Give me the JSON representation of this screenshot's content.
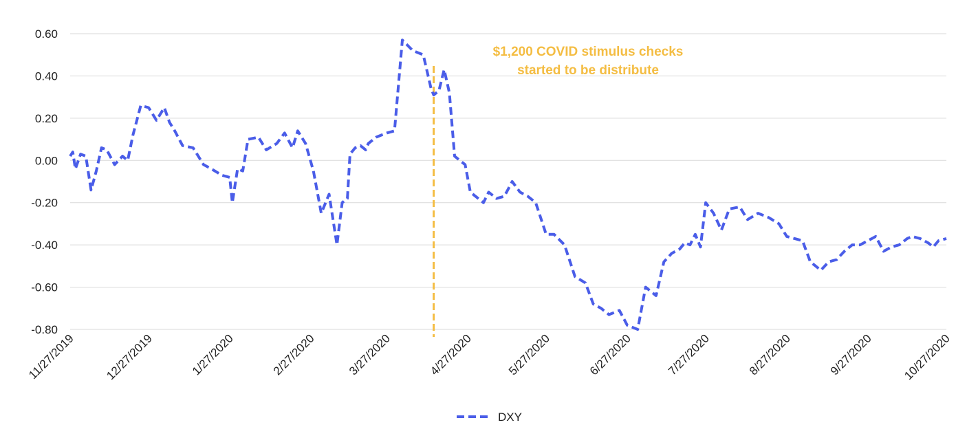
{
  "colors": {
    "series": "#4a5de8",
    "annotation": "#f4bd43",
    "grid": "#d9d9d9",
    "text": "#222222"
  },
  "legend": {
    "label": "DXY",
    "placement": "bottom-center"
  },
  "annotation": {
    "line1": "$1,200 COVID stimulus checks",
    "line2": "started to be distribute",
    "date": "4/14/2020"
  },
  "chart_data": {
    "type": "line",
    "title": "",
    "xlabel": "",
    "ylabel": "",
    "ylim": [
      -0.8,
      0.6
    ],
    "xlim": [
      "11/27/2019",
      "10/27/2020"
    ],
    "grid": true,
    "y_ticks": [
      "0.60",
      "0.40",
      "0.20",
      "0.00",
      "-0.20",
      "-0.40",
      "-0.60",
      "-0.80"
    ],
    "x_ticks": [
      "11/27/2019",
      "12/27/2019",
      "1/27/2020",
      "2/27/2020",
      "3/27/2020",
      "4/27/2020",
      "5/27/2020",
      "6/27/2020",
      "7/27/2020",
      "8/27/2020",
      "9/27/2020",
      "10/27/2020"
    ],
    "series": [
      {
        "name": "DXY",
        "style": "dashed",
        "x": [
          "2019-11-27",
          "2019-11-28",
          "2019-11-29",
          "2019-12-01",
          "2019-12-03",
          "2019-12-05",
          "2019-12-07",
          "2019-12-09",
          "2019-12-11",
          "2019-12-14",
          "2019-12-17",
          "2019-12-19",
          "2019-12-21",
          "2019-12-24",
          "2019-12-27",
          "2019-12-30",
          "2020-01-02",
          "2020-01-04",
          "2020-01-06",
          "2020-01-09",
          "2020-01-13",
          "2020-01-17",
          "2020-01-20",
          "2020-01-24",
          "2020-01-27",
          "2020-01-28",
          "2020-01-30",
          "2020-02-01",
          "2020-02-03",
          "2020-02-07",
          "2020-02-10",
          "2020-02-14",
          "2020-02-17",
          "2020-02-20",
          "2020-02-22",
          "2020-02-25",
          "2020-02-28",
          "2020-03-02",
          "2020-03-05",
          "2020-03-08",
          "2020-03-10",
          "2020-03-12",
          "2020-03-13",
          "2020-03-15",
          "2020-03-17",
          "2020-03-19",
          "2020-03-20",
          "2020-03-23",
          "2020-03-27",
          "2020-03-30",
          "2020-04-02",
          "2020-04-06",
          "2020-04-10",
          "2020-04-13",
          "2020-04-14",
          "2020-04-16",
          "2020-04-18",
          "2020-04-20",
          "2020-04-22",
          "2020-04-24",
          "2020-04-26",
          "2020-04-28",
          "2020-05-01",
          "2020-05-03",
          "2020-05-05",
          "2020-05-08",
          "2020-05-11",
          "2020-05-14",
          "2020-05-17",
          "2020-05-20",
          "2020-05-23",
          "2020-05-27",
          "2020-05-30",
          "2020-06-03",
          "2020-06-07",
          "2020-06-11",
          "2020-06-14",
          "2020-06-17",
          "2020-06-20",
          "2020-06-24",
          "2020-06-27",
          "2020-07-01",
          "2020-07-04",
          "2020-07-08",
          "2020-07-11",
          "2020-07-14",
          "2020-07-17",
          "2020-07-19",
          "2020-07-21",
          "2020-07-23",
          "2020-07-25",
          "2020-07-27",
          "2020-07-30",
          "2020-08-02",
          "2020-08-05",
          "2020-08-09",
          "2020-08-12",
          "2020-08-16",
          "2020-08-20",
          "2020-08-24",
          "2020-08-27",
          "2020-08-30",
          "2020-09-02",
          "2020-09-05",
          "2020-09-09",
          "2020-09-12",
          "2020-09-15",
          "2020-09-18",
          "2020-09-21",
          "2020-09-24",
          "2020-09-27",
          "2020-09-30",
          "2020-10-03",
          "2020-10-06",
          "2020-10-09",
          "2020-10-12",
          "2020-10-14",
          "2020-10-17",
          "2020-10-20",
          "2020-10-22",
          "2020-10-24",
          "2020-10-27"
        ],
        "y": [
          0.02,
          0.04,
          -0.04,
          0.03,
          0.02,
          -0.14,
          -0.05,
          0.06,
          0.05,
          -0.02,
          0.02,
          0.0,
          0.12,
          0.26,
          0.25,
          0.19,
          0.25,
          0.18,
          0.14,
          0.07,
          0.06,
          -0.02,
          -0.04,
          -0.07,
          -0.08,
          -0.2,
          -0.04,
          -0.05,
          0.1,
          0.11,
          0.05,
          0.08,
          0.13,
          0.06,
          0.14,
          0.08,
          -0.05,
          -0.25,
          -0.16,
          -0.4,
          -0.2,
          -0.18,
          0.03,
          0.06,
          0.07,
          0.05,
          0.08,
          0.11,
          0.13,
          0.14,
          0.57,
          0.52,
          0.5,
          0.34,
          0.31,
          0.33,
          0.43,
          0.32,
          0.02,
          0.0,
          -0.02,
          -0.15,
          -0.18,
          -0.2,
          -0.15,
          -0.18,
          -0.17,
          -0.1,
          -0.15,
          -0.17,
          -0.2,
          -0.35,
          -0.35,
          -0.4,
          -0.55,
          -0.58,
          -0.68,
          -0.7,
          -0.73,
          -0.71,
          -0.78,
          -0.8,
          -0.6,
          -0.64,
          -0.48,
          -0.44,
          -0.42,
          -0.39,
          -0.4,
          -0.35,
          -0.41,
          -0.2,
          -0.25,
          -0.33,
          -0.23,
          -0.22,
          -0.28,
          -0.25,
          -0.27,
          -0.3,
          -0.36,
          -0.37,
          -0.38,
          -0.48,
          -0.52,
          -0.48,
          -0.47,
          -0.43,
          -0.4,
          -0.4,
          -0.38,
          -0.36,
          -0.43,
          -0.41,
          -0.4,
          -0.37,
          -0.36,
          -0.37,
          -0.39,
          -0.41,
          -0.38,
          -0.37
        ]
      }
    ]
  }
}
